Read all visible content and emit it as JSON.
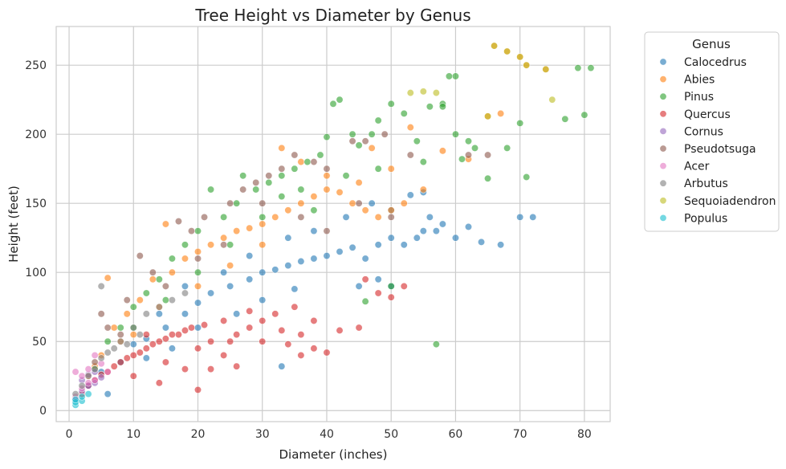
{
  "chart_data": {
    "type": "scatter",
    "title": "Tree Height vs Diameter by Genus",
    "xlabel": "Diameter (inches)",
    "ylabel": "Height (feet)",
    "xlim": [
      -2,
      84
    ],
    "ylim": [
      -8,
      278
    ],
    "x_ticks": [
      0,
      10,
      20,
      30,
      40,
      50,
      60,
      70,
      80
    ],
    "y_ticks": [
      0,
      50,
      100,
      150,
      200,
      250
    ],
    "grid": true,
    "legend": {
      "title": "Genus",
      "placement": "outside-top-right"
    },
    "marker_alpha": 0.6,
    "series": [
      {
        "name": "Calocedrus",
        "color": "#1f77b4",
        "points": [
          [
            3,
            18
          ],
          [
            5,
            28
          ],
          [
            8,
            35
          ],
          [
            10,
            48
          ],
          [
            12,
            52
          ],
          [
            15,
            60
          ],
          [
            18,
            70
          ],
          [
            20,
            78
          ],
          [
            22,
            85
          ],
          [
            25,
            90
          ],
          [
            28,
            95
          ],
          [
            30,
            100
          ],
          [
            32,
            102
          ],
          [
            34,
            105
          ],
          [
            36,
            108
          ],
          [
            38,
            110
          ],
          [
            40,
            112
          ],
          [
            42,
            115
          ],
          [
            44,
            118
          ],
          [
            46,
            110
          ],
          [
            48,
            120
          ],
          [
            50,
            125
          ],
          [
            52,
            120
          ],
          [
            54,
            125
          ],
          [
            55,
            130
          ],
          [
            56,
            140
          ],
          [
            57,
            130
          ],
          [
            58,
            135
          ],
          [
            60,
            125
          ],
          [
            62,
            133
          ],
          [
            64,
            122
          ],
          [
            67,
            120
          ],
          [
            70,
            140
          ],
          [
            72,
            140
          ],
          [
            45,
            90
          ],
          [
            48,
            95
          ],
          [
            50,
            90
          ],
          [
            35,
            88
          ],
          [
            30,
            80
          ],
          [
            26,
            70
          ],
          [
            20,
            60
          ],
          [
            16,
            45
          ],
          [
            12,
            38
          ],
          [
            33,
            32
          ],
          [
            53,
            156
          ],
          [
            55,
            158
          ],
          [
            50,
            145
          ],
          [
            47,
            150
          ],
          [
            43,
            140
          ],
          [
            38,
            130
          ],
          [
            34,
            125
          ],
          [
            28,
            112
          ],
          [
            24,
            100
          ],
          [
            18,
            90
          ],
          [
            6,
            12
          ],
          [
            14,
            70
          ]
        ]
      },
      {
        "name": "Abies",
        "color": "#ff7f0e",
        "points": [
          [
            3,
            25
          ],
          [
            5,
            40
          ],
          [
            6,
            96
          ],
          [
            7,
            60
          ],
          [
            9,
            70
          ],
          [
            11,
            80
          ],
          [
            13,
            95
          ],
          [
            15,
            135
          ],
          [
            16,
            100
          ],
          [
            18,
            110
          ],
          [
            20,
            115
          ],
          [
            22,
            120
          ],
          [
            24,
            125
          ],
          [
            26,
            130
          ],
          [
            28,
            132
          ],
          [
            30,
            135
          ],
          [
            32,
            140
          ],
          [
            34,
            145
          ],
          [
            36,
            150
          ],
          [
            38,
            155
          ],
          [
            40,
            160
          ],
          [
            42,
            158
          ],
          [
            44,
            150
          ],
          [
            46,
            145
          ],
          [
            48,
            140
          ],
          [
            50,
            145
          ],
          [
            52,
            150
          ],
          [
            53,
            205
          ],
          [
            55,
            160
          ],
          [
            58,
            188
          ],
          [
            62,
            182
          ],
          [
            65,
            213
          ],
          [
            67,
            215
          ],
          [
            66,
            264
          ],
          [
            68,
            260
          ],
          [
            70,
            256
          ],
          [
            71,
            250
          ],
          [
            74,
            247
          ],
          [
            36,
            180
          ],
          [
            40,
            170
          ],
          [
            45,
            165
          ],
          [
            50,
            175
          ],
          [
            30,
            120
          ],
          [
            25,
            105
          ],
          [
            20,
            90
          ],
          [
            14,
            75
          ],
          [
            10,
            55
          ],
          [
            8,
            50
          ],
          [
            4,
            32
          ],
          [
            33,
            190
          ],
          [
            47,
            190
          ]
        ]
      },
      {
        "name": "Pinus",
        "color": "#2ca02c",
        "points": [
          [
            4,
            30
          ],
          [
            6,
            50
          ],
          [
            8,
            60
          ],
          [
            10,
            75
          ],
          [
            12,
            85
          ],
          [
            14,
            95
          ],
          [
            16,
            110
          ],
          [
            18,
            120
          ],
          [
            20,
            130
          ],
          [
            22,
            160
          ],
          [
            24,
            140
          ],
          [
            26,
            150
          ],
          [
            27,
            170
          ],
          [
            29,
            160
          ],
          [
            31,
            165
          ],
          [
            33,
            170
          ],
          [
            35,
            175
          ],
          [
            37,
            180
          ],
          [
            39,
            185
          ],
          [
            40,
            198
          ],
          [
            41,
            222
          ],
          [
            42,
            225
          ],
          [
            44,
            200
          ],
          [
            45,
            192
          ],
          [
            47,
            200
          ],
          [
            48,
            210
          ],
          [
            50,
            222
          ],
          [
            52,
            215
          ],
          [
            54,
            195
          ],
          [
            56,
            220
          ],
          [
            58,
            222
          ],
          [
            59,
            242
          ],
          [
            60,
            242
          ],
          [
            61,
            182
          ],
          [
            62,
            195
          ],
          [
            63,
            190
          ],
          [
            65,
            168
          ],
          [
            68,
            190
          ],
          [
            70,
            208
          ],
          [
            71,
            169
          ],
          [
            77,
            211
          ],
          [
            79,
            248
          ],
          [
            80,
            214
          ],
          [
            81,
            248
          ],
          [
            58,
            220
          ],
          [
            57,
            48
          ],
          [
            50,
            90
          ],
          [
            46,
            79
          ],
          [
            36,
            160
          ],
          [
            30,
            140
          ],
          [
            25,
            120
          ],
          [
            20,
            100
          ],
          [
            15,
            80
          ],
          [
            10,
            60
          ],
          [
            33,
            155
          ],
          [
            43,
            170
          ],
          [
            38,
            145
          ],
          [
            48,
            175
          ],
          [
            55,
            180
          ],
          [
            60,
            200
          ]
        ]
      },
      {
        "name": "Quercus",
        "color": "#d62728",
        "points": [
          [
            2,
            12
          ],
          [
            3,
            18
          ],
          [
            4,
            22
          ],
          [
            5,
            26
          ],
          [
            6,
            28
          ],
          [
            7,
            32
          ],
          [
            8,
            35
          ],
          [
            9,
            38
          ],
          [
            10,
            40
          ],
          [
            11,
            42
          ],
          [
            12,
            45
          ],
          [
            13,
            48
          ],
          [
            14,
            50
          ],
          [
            15,
            52
          ],
          [
            16,
            55
          ],
          [
            17,
            55
          ],
          [
            18,
            58
          ],
          [
            19,
            60
          ],
          [
            20,
            15
          ],
          [
            21,
            62
          ],
          [
            22,
            30
          ],
          [
            24,
            40
          ],
          [
            25,
            50
          ],
          [
            26,
            55
          ],
          [
            28,
            60
          ],
          [
            30,
            65
          ],
          [
            32,
            70
          ],
          [
            34,
            48
          ],
          [
            35,
            75
          ],
          [
            36,
            55
          ],
          [
            38,
            45
          ],
          [
            40,
            42
          ],
          [
            42,
            58
          ],
          [
            45,
            60
          ],
          [
            46,
            95
          ],
          [
            48,
            85
          ],
          [
            50,
            82
          ],
          [
            52,
            90
          ],
          [
            20,
            45
          ],
          [
            15,
            35
          ],
          [
            10,
            25
          ],
          [
            24,
            65
          ],
          [
            28,
            72
          ],
          [
            18,
            30
          ],
          [
            12,
            55
          ],
          [
            30,
            50
          ],
          [
            33,
            58
          ],
          [
            38,
            65
          ],
          [
            36,
            40
          ],
          [
            26,
            32
          ],
          [
            22,
            50
          ],
          [
            14,
            20
          ]
        ]
      },
      {
        "name": "Cornus",
        "color": "#9467bd",
        "points": [
          [
            1,
            8
          ],
          [
            2,
            14
          ],
          [
            2,
            22
          ],
          [
            3,
            18
          ],
          [
            3,
            26
          ],
          [
            4,
            20
          ],
          [
            4,
            28
          ],
          [
            5,
            24
          ]
        ]
      },
      {
        "name": "Pseudotsuga",
        "color": "#8c564b",
        "points": [
          [
            5,
            70
          ],
          [
            6,
            60
          ],
          [
            9,
            80
          ],
          [
            11,
            112
          ],
          [
            13,
            100
          ],
          [
            17,
            137
          ],
          [
            19,
            130
          ],
          [
            21,
            140
          ],
          [
            25,
            150
          ],
          [
            27,
            160
          ],
          [
            29,
            165
          ],
          [
            31,
            170
          ],
          [
            35,
            185
          ],
          [
            38,
            180
          ],
          [
            40,
            175
          ],
          [
            44,
            195
          ],
          [
            46,
            195
          ],
          [
            49,
            200
          ],
          [
            53,
            185
          ],
          [
            62,
            185
          ],
          [
            65,
            185
          ],
          [
            50,
            140
          ],
          [
            45,
            150
          ],
          [
            40,
            130
          ],
          [
            36,
            140
          ],
          [
            24,
            120
          ],
          [
            20,
            110
          ],
          [
            15,
            90
          ],
          [
            8,
            55
          ],
          [
            4,
            35
          ],
          [
            30,
            150
          ],
          [
            33,
            175
          ]
        ]
      },
      {
        "name": "Acer",
        "color": "#e377c2",
        "points": [
          [
            1,
            10
          ],
          [
            1,
            28
          ],
          [
            2,
            16
          ],
          [
            2,
            25
          ],
          [
            3,
            20
          ],
          [
            3,
            30
          ],
          [
            4,
            22
          ],
          [
            5,
            34
          ],
          [
            6,
            28
          ],
          [
            4,
            40
          ]
        ]
      },
      {
        "name": "Arbutus",
        "color": "#7f7f7f",
        "points": [
          [
            1,
            12
          ],
          [
            2,
            18
          ],
          [
            3,
            25
          ],
          [
            4,
            30
          ],
          [
            5,
            38
          ],
          [
            5,
            90
          ],
          [
            6,
            42
          ],
          [
            8,
            50
          ],
          [
            10,
            60
          ],
          [
            12,
            70
          ],
          [
            14,
            75
          ],
          [
            16,
            80
          ],
          [
            18,
            85
          ],
          [
            9,
            48
          ],
          [
            7,
            45
          ],
          [
            11,
            55
          ]
        ]
      },
      {
        "name": "Sequoiadendron",
        "color": "#bcbd22",
        "points": [
          [
            53,
            230
          ],
          [
            55,
            231
          ],
          [
            65,
            213
          ],
          [
            66,
            264
          ],
          [
            68,
            260
          ],
          [
            70,
            256
          ],
          [
            71,
            250
          ],
          [
            74,
            247
          ],
          [
            75,
            225
          ],
          [
            57,
            230
          ]
        ]
      },
      {
        "name": "Populus",
        "color": "#17becf",
        "points": [
          [
            1,
            4
          ],
          [
            1,
            6
          ],
          [
            1,
            8
          ],
          [
            2,
            7
          ],
          [
            2,
            10
          ],
          [
            3,
            12
          ]
        ]
      }
    ]
  }
}
